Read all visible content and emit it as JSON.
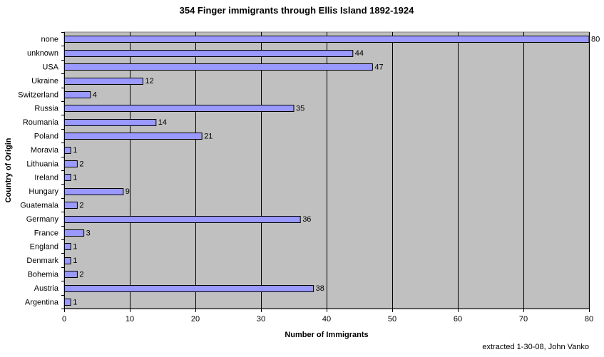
{
  "chart_data": {
    "type": "bar",
    "orientation": "horizontal",
    "title": "354 Finger immigrants through Ellis Island 1892-1924",
    "xlabel": "Number of Immigrants",
    "ylabel": "Country of Origin",
    "xlim": [
      0,
      80
    ],
    "xticks": [
      0,
      10,
      20,
      30,
      40,
      50,
      60,
      70,
      80
    ],
    "grid": "vertical",
    "legend": "none",
    "colors": {
      "plot_background": "#c0c0c0",
      "bar_fill": "#9999ff",
      "bar_stroke": "#000000",
      "gridline": "#000000"
    },
    "categories": [
      "none",
      "unknown",
      "USA",
      "Ukraine",
      "Switzerland",
      "Russia",
      "Roumania",
      "Poland",
      "Moravia",
      "Lithuania",
      "Ireland",
      "Hungary",
      "Guatemala",
      "Germany",
      "France",
      "England",
      "Denmark",
      "Bohemia",
      "Austria",
      "Argentina"
    ],
    "values": [
      80,
      44,
      47,
      12,
      4,
      35,
      14,
      21,
      1,
      2,
      1,
      9,
      2,
      36,
      3,
      1,
      1,
      2,
      38,
      1
    ],
    "footnote": "extracted 1-30-08, John Vanko"
  }
}
